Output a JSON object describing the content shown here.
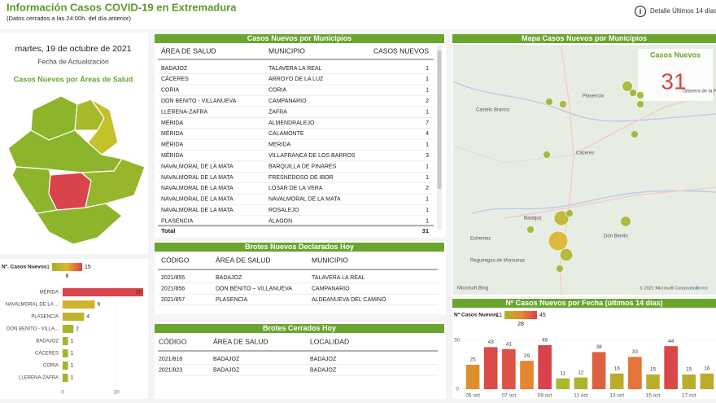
{
  "header": {
    "title": "Información Casos COVID-19 en Extremadura",
    "subtitle": "(Datos cerrados a las 24:00h. del día anterior)",
    "detail_link": "Detalle Últimos 14 días"
  },
  "update": {
    "date": "martes, 19 de octubre de 2021",
    "label": "Fecha de Actualización"
  },
  "areas_map": {
    "title": "Casos Nuevos por Áreas de Salud"
  },
  "municipios": {
    "title": "Casos Nuevos por Municipios",
    "columns": [
      "ÁREA DE SALUD",
      "MUNICIPIO",
      "CASOS NUEVOS"
    ],
    "rows": [
      [
        "BADAJOZ",
        "TALAVERA LA REAL",
        1
      ],
      [
        "CÁCERES",
        "ARROYO DE LA LUZ",
        1
      ],
      [
        "CORIA",
        "CORIA",
        1
      ],
      [
        "DON BENITO - VILLANUEVA",
        "CAMPANARIO",
        2
      ],
      [
        "LLERENA-ZAFRA",
        "ZAFRA",
        1
      ],
      [
        "MÉRIDA",
        "ALMENDRALEJO",
        7
      ],
      [
        "MÉRIDA",
        "CALAMONTE",
        4
      ],
      [
        "MÉRIDA",
        "MERIDA",
        1
      ],
      [
        "MÉRIDA",
        "VILLAFRANCA DE LOS BARROS",
        3
      ],
      [
        "NAVALMORAL DE LA MATA",
        "BARQUILLA DE PINARES",
        1
      ],
      [
        "NAVALMORAL DE LA MATA",
        "FRESNEDOSO DE IBOR",
        1
      ],
      [
        "NAVALMORAL DE LA MATA",
        "LOSAR DE LA VERA",
        2
      ],
      [
        "NAVALMORAL DE LA MATA",
        "NAVALMORAL DE LA MATA",
        1
      ],
      [
        "NAVALMORAL DE LA MATA",
        "ROSALEJO",
        1
      ],
      [
        "PLASENCIA",
        "ALAGON",
        1
      ]
    ],
    "total_label": "Total",
    "total": 31
  },
  "brotes_nuevos": {
    "title": "Brotes Nuevos Declarados Hoy",
    "columns": [
      "CÓDIGO",
      "ÁREA DE SALUD",
      "MUNICIPIO"
    ],
    "rows": [
      [
        "2021/855",
        "BADAJOZ",
        "TALAVERA LA REAL"
      ],
      [
        "2021/856",
        "DON BENITO – VILLANUEVA",
        "CAMPANARIO"
      ],
      [
        "2021/857",
        "PLASENCIA",
        "ALDEANUEVA DEL CAMINO"
      ]
    ]
  },
  "brotes_cerrados": {
    "title": "Brotes Cerrados Hoy",
    "columns": [
      "CÓDIGO",
      "ÁREA DE SALUD",
      "LOCALIDAD"
    ],
    "rows": [
      [
        "2021/818",
        "BADAJOZ",
        "BADAJOZ"
      ],
      [
        "2021/823",
        "BADAJOZ",
        "BADAJOZ"
      ]
    ]
  },
  "map": {
    "title": "Mapa Casos Nuevos por Municipios",
    "card_label": "Casos Nuevos",
    "card_value": 31,
    "place_labels": [
      "Plasencia",
      "Cáceres",
      "Badajoz",
      "Don Benito",
      "Castelo Branco",
      "Talavera de la Reina",
      "Estremoz",
      "Reguengos de Monsaraz"
    ],
    "attribution": "© 2021 Microsoft Corporation",
    "terms": "Terms",
    "brand": "Microsoft Bing"
  },
  "chart_data": [
    {
      "type": "bar",
      "orientation": "horizontal",
      "legend_title": "Nº. Casos Nuevos",
      "color_scale": {
        "stops": [
          1,
          8,
          15
        ],
        "colors": [
          "#9fb52b",
          "#e4b22c",
          "#d9434b"
        ]
      },
      "categories": [
        "MÉRIDA",
        "NAVALMORAL DE LA ...",
        "PLASENCIA",
        "DON BENITO - VILLA...",
        "BADAJOZ",
        "CÁCERES",
        "CORIA",
        "LLERENA-ZAFRA"
      ],
      "values": [
        15,
        6,
        4,
        2,
        1,
        1,
        1,
        1
      ],
      "xlim": [
        0,
        15
      ],
      "xticks": [
        0,
        10
      ]
    },
    {
      "type": "bar",
      "title": "Nº Casos Nuevos por Fecha (últimos 14 días)",
      "legend_title": "Nº Casos Nuevos",
      "color_scale": {
        "stops": [
          11,
          28,
          45
        ],
        "colors": [
          "#a9b92a",
          "#e8892f",
          "#d9434b"
        ]
      },
      "categories": [
        "05 oct",
        null,
        "07 oct",
        null,
        "09 oct",
        null,
        "11 oct",
        null,
        "13 oct",
        null,
        "15 oct",
        null,
        "17 oct",
        null
      ],
      "values": [
        25,
        43,
        41,
        29,
        45,
        11,
        12,
        38,
        16,
        33,
        15,
        44,
        15,
        16
      ],
      "ylim": [
        0,
        50
      ],
      "yticks": [
        0,
        50
      ]
    }
  ]
}
